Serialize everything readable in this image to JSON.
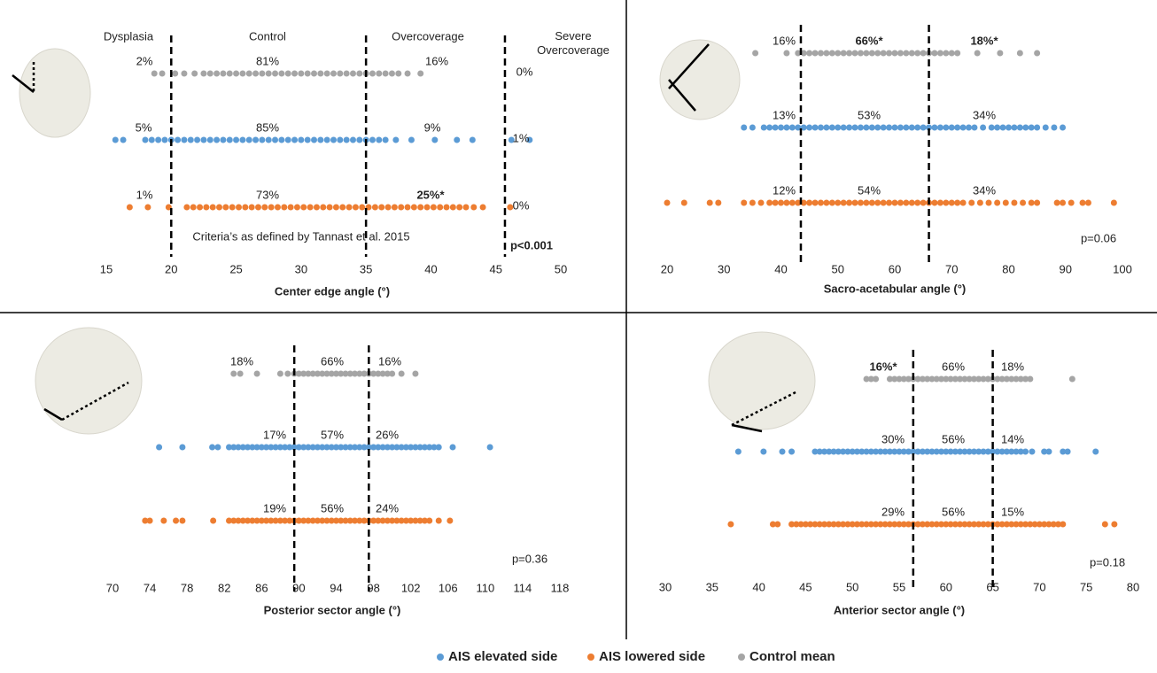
{
  "chart_data": [
    {
      "type": "strip",
      "xlabel": "Center edge angle (°)",
      "xlim": [
        15,
        50
      ],
      "xticks": [
        15,
        20,
        25,
        30,
        35,
        40,
        45,
        50
      ],
      "thresholds": [
        20,
        35,
        45.7
      ],
      "region_names": [
        "Dysplasia",
        "Control",
        "Overcoverage",
        "Severe Overcoverage"
      ],
      "note": "Criteria’s as defined by  Tannast et al. 2015",
      "p_value": "p<0.001",
      "series": [
        {
          "name": "Control mean",
          "color": "#a5a5a5",
          "region_labels": [
            "2%",
            "81%",
            "16%",
            "0%"
          ],
          "values": [
            18.7,
            19.3,
            20.3,
            21,
            21.8,
            22.5,
            23,
            23.5,
            24,
            24.5,
            25,
            25.5,
            26,
            26.5,
            27,
            27.5,
            28,
            28.5,
            29,
            29.5,
            30,
            30.5,
            31,
            31.5,
            32,
            32.5,
            33,
            33.5,
            34,
            34.5,
            35,
            35.5,
            36,
            36.5,
            37,
            37.5,
            38.2,
            39.2
          ]
        },
        {
          "name": "AIS elevated side",
          "color": "#5b9bd5",
          "region_labels": [
            "5%",
            "85%",
            "9%",
            "1%"
          ],
          "values": [
            15.7,
            16.3,
            18,
            18.5,
            19,
            19.5,
            20,
            20.5,
            21,
            21.5,
            22,
            22.5,
            23,
            23.5,
            24,
            24.5,
            25,
            25.5,
            26,
            26.5,
            27,
            27.5,
            28,
            28.5,
            29,
            29.5,
            30,
            30.5,
            31,
            31.5,
            32,
            32.5,
            33,
            33.5,
            34,
            34.5,
            35,
            35.5,
            36,
            36.5,
            37.3,
            38.5,
            40.3,
            42,
            43.2,
            46.2,
            47.6
          ]
        },
        {
          "name": "AIS lowered side",
          "color": "#ed7d31",
          "region_labels": [
            "1%",
            "73%",
            "25%*",
            "0%"
          ],
          "values": [
            16.8,
            18.2,
            19.8,
            21.2,
            21.7,
            22.2,
            22.7,
            23.2,
            23.7,
            24.2,
            24.7,
            25.2,
            25.7,
            26.2,
            26.7,
            27.2,
            27.7,
            28.2,
            28.7,
            29.2,
            29.7,
            30.2,
            30.7,
            31.2,
            31.7,
            32.2,
            32.7,
            33.2,
            33.7,
            34.2,
            34.7,
            35.2,
            35.7,
            36.2,
            36.7,
            37.2,
            37.7,
            38.2,
            38.7,
            39.2,
            39.7,
            40.2,
            40.7,
            41.2,
            41.7,
            42.2,
            42.7,
            43.3,
            44,
            46.1
          ]
        }
      ]
    },
    {
      "type": "strip",
      "xlabel": "Sacro-acetabular angle (°)",
      "xlim": [
        20,
        100
      ],
      "xticks": [
        20,
        30,
        40,
        50,
        60,
        70,
        80,
        90,
        100
      ],
      "thresholds": [
        43.5,
        66
      ],
      "p_value": "p=0.06",
      "series": [
        {
          "name": "Control mean",
          "color": "#a5a5a5",
          "region_labels": [
            "16%",
            "66%*",
            "18%*"
          ],
          "values": [
            35.5,
            41,
            43,
            44,
            45,
            46,
            47,
            48,
            49,
            50,
            51,
            52,
            53,
            54,
            55,
            56,
            57,
            58,
            59,
            60,
            61,
            62,
            63,
            64,
            65,
            66,
            67,
            68,
            69,
            70,
            71,
            74.5,
            78.5,
            82,
            85
          ]
        },
        {
          "name": "AIS elevated side",
          "color": "#5b9bd5",
          "region_labels": [
            "13%",
            "53%",
            "34%"
          ],
          "values": [
            33.5,
            35,
            37,
            38,
            39,
            40,
            41,
            42,
            43,
            44,
            45,
            46,
            47,
            48,
            49,
            50,
            51,
            52,
            53,
            54,
            55,
            56,
            57,
            58,
            59,
            60,
            61,
            62,
            63,
            64,
            65,
            66,
            67,
            68,
            69,
            70,
            71,
            72,
            73,
            74,
            75.5,
            77,
            78,
            79,
            80,
            81,
            82,
            83,
            84,
            85,
            86.5,
            88,
            89.5
          ]
        },
        {
          "name": "AIS lowered side",
          "color": "#ed7d31",
          "region_labels": [
            "12%",
            "54%",
            "34%"
          ],
          "values": [
            20,
            23,
            27.5,
            29,
            33.5,
            35,
            36.5,
            38,
            39,
            40,
            41,
            42,
            43,
            44,
            45,
            46,
            47,
            48,
            49,
            50,
            51,
            52,
            53,
            54,
            55,
            56,
            57,
            58,
            59,
            60,
            61,
            62,
            63,
            64,
            65,
            66,
            67,
            68,
            69,
            70,
            71,
            72,
            73.5,
            75,
            76.5,
            78,
            79.5,
            81,
            82.5,
            84,
            85,
            88.5,
            89.5,
            91,
            93,
            94,
            98.5
          ]
        }
      ]
    },
    {
      "type": "strip",
      "xlabel": "Posterior sector angle (°)",
      "xlim": [
        70,
        118
      ],
      "xticks": [
        70,
        74,
        78,
        82,
        86,
        90,
        94,
        98,
        102,
        106,
        110,
        114,
        118
      ],
      "thresholds": [
        89.5,
        97.5
      ],
      "p_value": "p=0.36",
      "series": [
        {
          "name": "Control mean",
          "color": "#a5a5a5",
          "region_labels": [
            "18%",
            "66%",
            "16%"
          ],
          "values": [
            83,
            83.7,
            85.5,
            88,
            88.8,
            89.5,
            90,
            90.5,
            91,
            91.5,
            92,
            92.5,
            93,
            93.5,
            94,
            94.5,
            95,
            95.5,
            96,
            96.5,
            97,
            97.5,
            98,
            98.5,
            99,
            99.5,
            100,
            101,
            102.5
          ]
        },
        {
          "name": "AIS elevated side",
          "color": "#5b9bd5",
          "region_labels": [
            "17%",
            "57%",
            "26%"
          ],
          "values": [
            75,
            77.5,
            80.7,
            81.3,
            82.5,
            83,
            83.5,
            84,
            84.5,
            85,
            85.5,
            86,
            86.5,
            87,
            87.5,
            88,
            88.5,
            89,
            89.5,
            90,
            90.5,
            91,
            91.5,
            92,
            92.5,
            93,
            93.5,
            94,
            94.5,
            95,
            95.5,
            96,
            96.5,
            97,
            97.5,
            98,
            98.5,
            99,
            99.5,
            100,
            100.5,
            101,
            101.5,
            102,
            102.5,
            103,
            103.5,
            104,
            104.5,
            105,
            106.5,
            110.5
          ]
        },
        {
          "name": "AIS lowered side",
          "color": "#ed7d31",
          "region_labels": [
            "19%",
            "56%",
            "24%"
          ],
          "values": [
            73.5,
            74,
            75.5,
            76.8,
            77.5,
            80.8,
            82.5,
            83,
            83.5,
            84,
            84.5,
            85,
            85.5,
            86,
            86.5,
            87,
            87.5,
            88,
            88.5,
            89,
            89.5,
            90,
            90.5,
            91,
            91.5,
            92,
            92.5,
            93,
            93.5,
            94,
            94.5,
            95,
            95.5,
            96,
            96.5,
            97,
            97.5,
            98,
            98.5,
            99,
            99.5,
            100,
            100.5,
            101,
            101.5,
            102,
            102.5,
            103,
            103.5,
            104,
            105,
            106.2
          ]
        }
      ]
    },
    {
      "type": "strip",
      "xlabel": "Anterior sector angle (°)",
      "xlim": [
        30,
        80
      ],
      "xticks": [
        30,
        35,
        40,
        45,
        50,
        55,
        60,
        65,
        70,
        75,
        80
      ],
      "thresholds": [
        56.5,
        65
      ],
      "p_value": "p=0.18",
      "series": [
        {
          "name": "Control mean",
          "color": "#a5a5a5",
          "region_labels": [
            "16%*",
            "66%",
            "18%"
          ],
          "values": [
            51.5,
            52,
            52.5,
            54,
            54.5,
            55,
            55.5,
            56,
            56.5,
            57,
            57.5,
            58,
            58.5,
            59,
            59.5,
            60,
            60.5,
            61,
            61.5,
            62,
            62.5,
            63,
            63.5,
            64,
            64.5,
            65,
            65.5,
            66,
            66.5,
            67,
            67.5,
            68,
            68.5,
            69,
            73.5
          ]
        },
        {
          "name": "AIS elevated side",
          "color": "#5b9bd5",
          "region_labels": [
            "30%",
            "56%",
            "14%"
          ],
          "values": [
            37.8,
            40.5,
            42.5,
            43.5,
            46,
            46.5,
            47,
            47.5,
            48,
            48.5,
            49,
            49.5,
            50,
            50.5,
            51,
            51.5,
            52,
            52.5,
            53,
            53.5,
            54,
            54.5,
            55,
            55.5,
            56,
            56.5,
            57,
            57.5,
            58,
            58.5,
            59,
            59.5,
            60,
            60.5,
            61,
            61.5,
            62,
            62.5,
            63,
            63.5,
            64,
            64.5,
            65,
            65.5,
            66,
            66.5,
            67,
            67.5,
            68,
            68.5,
            69.2,
            70.5,
            71,
            72.5,
            73,
            76
          ]
        },
        {
          "name": "AIS lowered side",
          "color": "#ed7d31",
          "region_labels": [
            "29%",
            "56%",
            "15%"
          ],
          "values": [
            37,
            41.5,
            42,
            43.5,
            44,
            44.5,
            45,
            45.5,
            46,
            46.5,
            47,
            47.5,
            48,
            48.5,
            49,
            49.5,
            50,
            50.5,
            51,
            51.5,
            52,
            52.5,
            53,
            53.5,
            54,
            54.5,
            55,
            55.5,
            56,
            56.5,
            57,
            57.5,
            58,
            58.5,
            59,
            59.5,
            60,
            60.5,
            61,
            61.5,
            62,
            62.5,
            63,
            63.5,
            64,
            64.5,
            65,
            65.5,
            66,
            66.5,
            67,
            67.5,
            68,
            68.5,
            69,
            69.5,
            70,
            70.5,
            71,
            71.5,
            72,
            72.5,
            77,
            78
          ]
        }
      ]
    }
  ]
}
